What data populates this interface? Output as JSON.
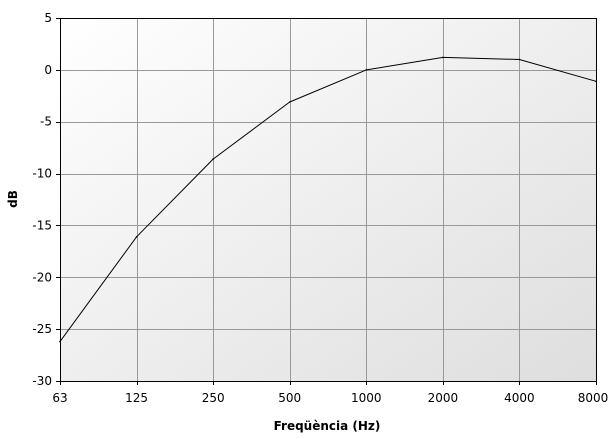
{
  "chart_data": {
    "type": "line",
    "title": "",
    "xlabel": "Freqüència (Hz)",
    "ylabel": "dB",
    "x_scale": "log2",
    "categories": [
      "63",
      "125",
      "250",
      "500",
      "1000",
      "2000",
      "4000",
      "8000"
    ],
    "ylim": [
      -30,
      5
    ],
    "yticks": [
      5,
      0,
      -5,
      -10,
      -15,
      -20,
      -25,
      -30
    ],
    "grid": true,
    "legend": "none",
    "series": [
      {
        "values": [
          -26.2,
          -16.1,
          -8.6,
          -3.1,
          0.0,
          1.2,
          1.0,
          -1.1
        ]
      }
    ],
    "colors": {
      "line": "#000000",
      "grid": "#999999",
      "plot_bg_top": "#ffffff",
      "plot_bg_bottom": "#dedede"
    }
  }
}
